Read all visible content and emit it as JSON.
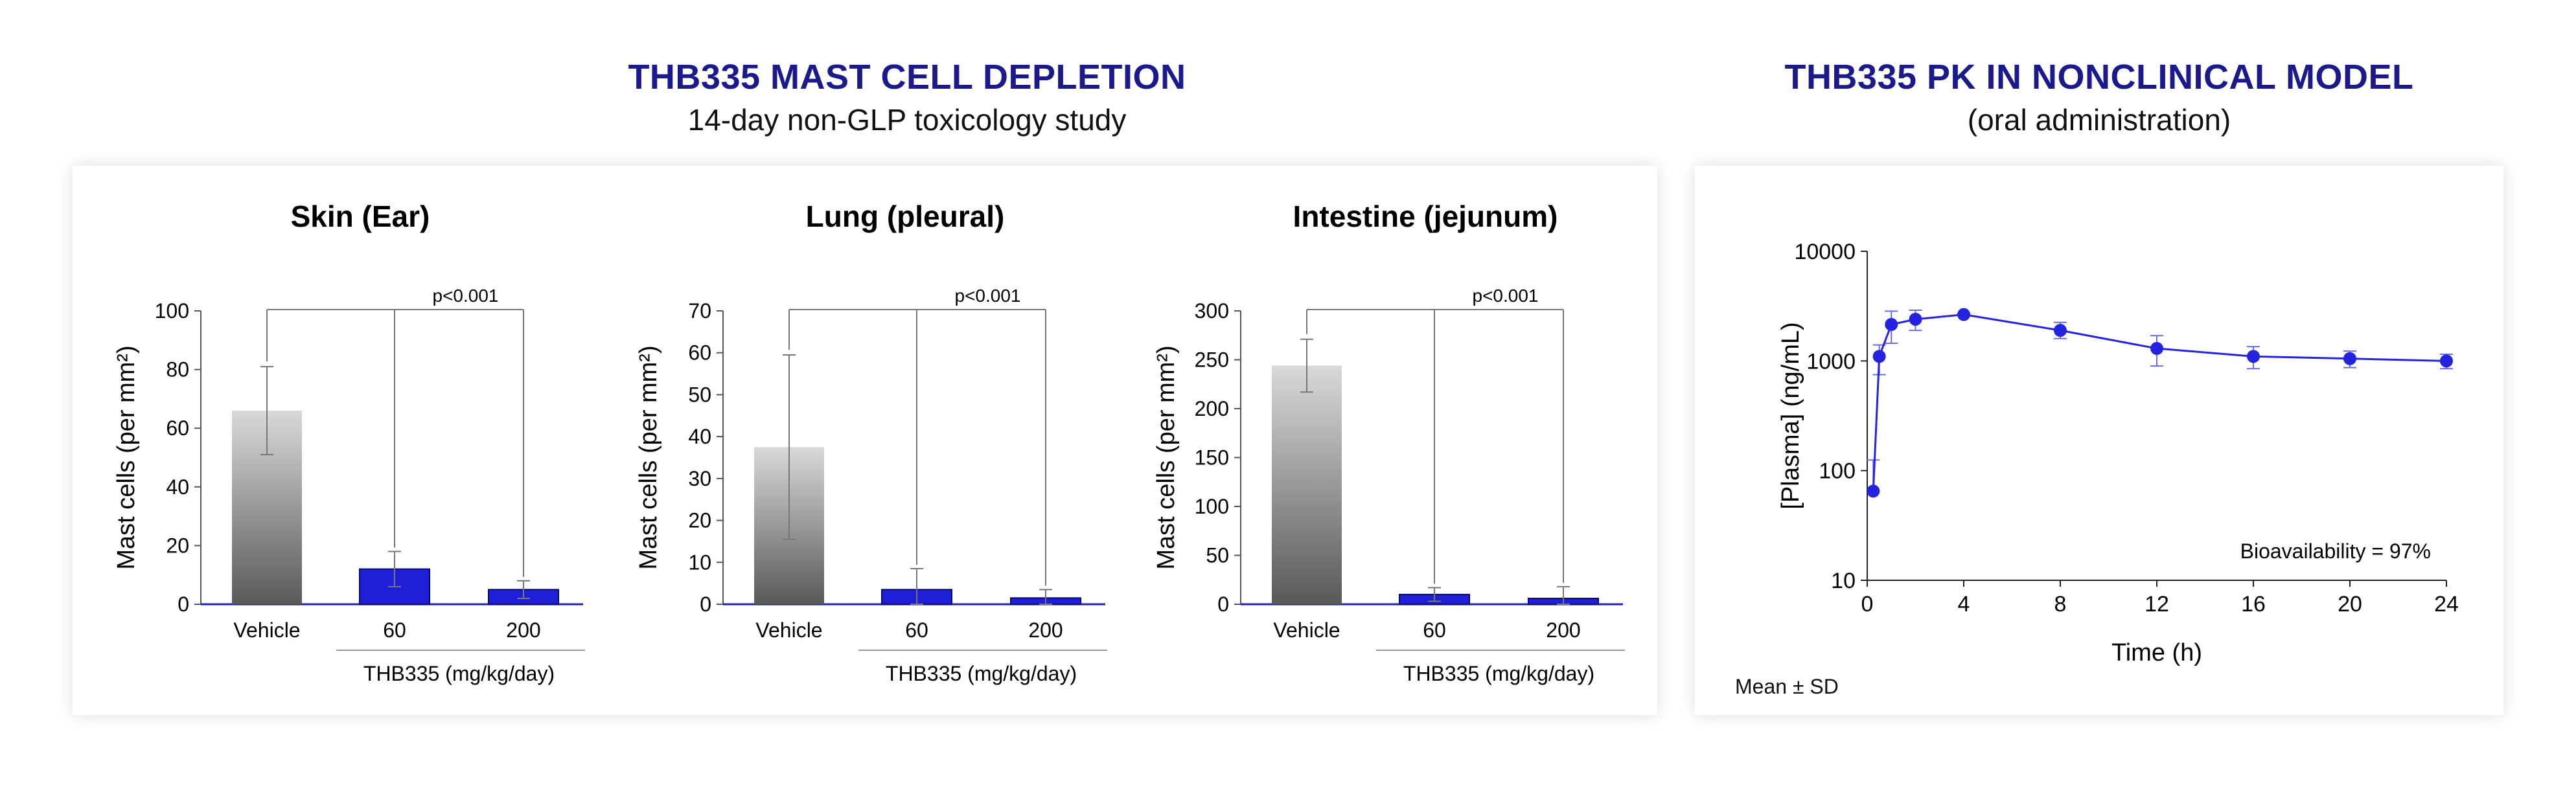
{
  "left": {
    "title": "THB335 MAST CELL DEPLETION",
    "subtitle": "14-day non-GLP toxicology study"
  },
  "right": {
    "title": "THB335 PK IN NONCLINICAL MODEL",
    "subtitle": "(oral administration)",
    "footnote": "Mean ± SD"
  },
  "colors": {
    "title": "#1a1a8c",
    "bar_blue": "#1f1fd8",
    "line_blue": "#2424e0",
    "error_bar": "#777777"
  },
  "chart_data": [
    {
      "type": "bar",
      "title": "Skin (Ear)",
      "ylabel": "Mast cells (per mm²)",
      "group_label": "THB335 (mg/kg/day)",
      "categories": [
        "Vehicle",
        "60",
        "200"
      ],
      "values": [
        66,
        12,
        5
      ],
      "errors": [
        15,
        6,
        3
      ],
      "ylim": [
        0,
        100
      ],
      "yticks": [
        "0",
        "20",
        "40",
        "60",
        "80",
        "100"
      ],
      "significance": "p<0.001"
    },
    {
      "type": "bar",
      "title": "Lung (pleural)",
      "ylabel": "Mast cells (per mm²)",
      "group_label": "THB335 (mg/kg/day)",
      "categories": [
        "Vehicle",
        "60",
        "200"
      ],
      "values": [
        37.5,
        3.5,
        1.5
      ],
      "errors": [
        22,
        5,
        2
      ],
      "ylim": [
        0,
        70
      ],
      "yticks": [
        "0",
        "10",
        "20",
        "30",
        "40",
        "50",
        "60",
        "70"
      ],
      "significance": "p<0.001"
    },
    {
      "type": "bar",
      "title": "Intestine (jejunum)",
      "ylabel": "Mast cells (per mm²)",
      "group_label": "THB335 (mg/kg/day)",
      "categories": [
        "Vehicle",
        "60",
        "200"
      ],
      "values": [
        244,
        10,
        6
      ],
      "errors": [
        27,
        7,
        12
      ],
      "ylim": [
        0,
        300
      ],
      "yticks": [
        "0",
        "50",
        "100",
        "150",
        "200",
        "250",
        "300"
      ],
      "significance": "p<0.001"
    },
    {
      "type": "line",
      "title": "",
      "xlabel": "Time (h)",
      "ylabel": "[Plasma] (ng/mL)",
      "yscale": "log",
      "x": [
        0.25,
        0.5,
        1,
        2,
        4,
        8,
        12,
        16,
        20,
        24
      ],
      "y": [
        65,
        1100,
        2150,
        2400,
        2650,
        1900,
        1300,
        1100,
        1050,
        1000
      ],
      "y_err_low": [
        0,
        350,
        700,
        500,
        0,
        300,
        400,
        250,
        180,
        150
      ],
      "y_err_high": [
        60,
        300,
        700,
        500,
        0,
        350,
        400,
        250,
        180,
        150
      ],
      "xlim": [
        0,
        24
      ],
      "ylim": [
        10,
        10000
      ],
      "xticks": [
        "0",
        "4",
        "8",
        "12",
        "16",
        "20",
        "24"
      ],
      "yticks": [
        "10",
        "100",
        "1000",
        "10000"
      ],
      "annotation": "Bioavailability = 97%"
    }
  ]
}
